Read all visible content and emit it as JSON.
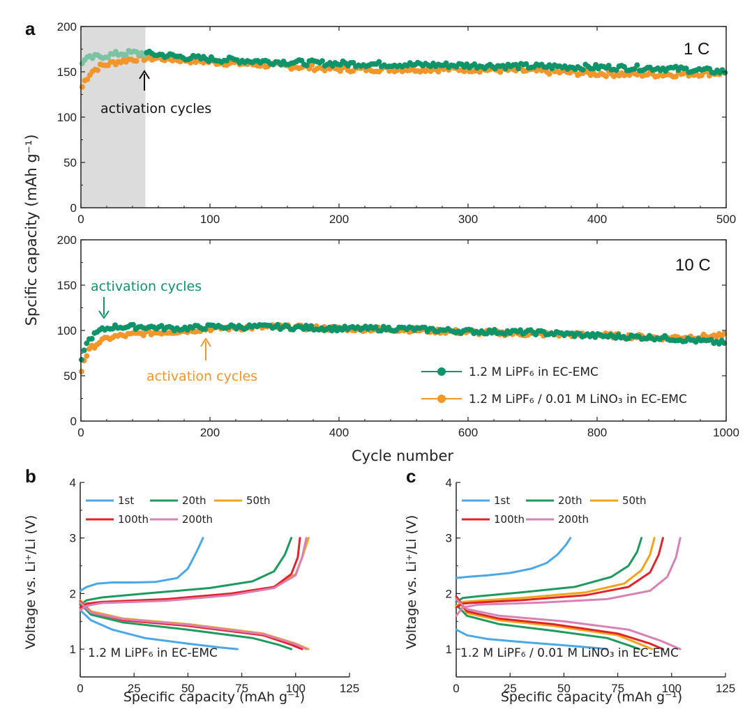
{
  "colors": {
    "green": "#0e9468",
    "orange": "#f2962b",
    "green_light": "#7cc3a3",
    "orange_light": "#f7c48e",
    "shade": "#dcdcdc",
    "cyc1": "#4aa8e8",
    "cyc20": "#1f9a5e",
    "cyc50": "#f0a418",
    "cyc100": "#e0242a",
    "cyc200": "#d981b5"
  },
  "labels": {
    "panel_a": "a",
    "panel_b": "b",
    "panel_c": "c",
    "rate_1c": "1 C",
    "rate_10c": "10 C",
    "act_a1": "activation cycles",
    "act_a2_green": "activation cycles",
    "act_a2_orange": "activation cycles",
    "ylabel_a": "Spcific capacity (mAh g⁻¹)",
    "xlabel_a": "Cycle number",
    "ylabel_bc": "Voltage vs. Li⁺/Li (V)",
    "xlabel_bc": "Specific capacity (mAh g⁻¹)",
    "legend_green": "1.2 M LiPF₆ in EC-EMC",
    "legend_orange": "1.2 M LiPF₆ / 0.01 M LiNO₃ in EC-EMC",
    "cond_b": "1.2 M LiPF₆ in EC-EMC",
    "cond_c": "1.2 M LiPF₆ / 0.01 M LiNO₃ in EC-EMC",
    "cyc_names": [
      "1st",
      "20th",
      "50th",
      "100th",
      "200th"
    ]
  },
  "chart_data": [
    {
      "id": "a_top",
      "type": "scatter",
      "xlim": [
        0,
        500
      ],
      "ylim": [
        0,
        200
      ],
      "xticks": [
        0,
        100,
        200,
        300,
        400,
        500
      ],
      "yticks": [
        0,
        50,
        100,
        150,
        200
      ],
      "shaded_region": [
        0,
        50
      ],
      "series": [
        {
          "name": "1.2 M LiPF₆ in EC-EMC",
          "x": [
            0,
            5,
            10,
            20,
            30,
            40,
            50,
            60,
            80,
            100,
            150,
            200,
            250,
            300,
            350,
            400,
            450,
            500
          ],
          "y": [
            160,
            164,
            166,
            168,
            170,
            171,
            170,
            169,
            166,
            164,
            161,
            159,
            158,
            157,
            156,
            155,
            154,
            150
          ]
        },
        {
          "name": "1.2 M LiPF₆ / 0.01 M LiNO₃ in EC-EMC",
          "x": [
            0,
            3,
            8,
            15,
            25,
            35,
            45,
            60,
            80,
            100,
            150,
            200,
            250,
            300,
            350,
            400,
            450,
            500
          ],
          "y": [
            130,
            140,
            150,
            156,
            160,
            163,
            165,
            165,
            163,
            161,
            157,
            153,
            153,
            153,
            151,
            148,
            147,
            149
          ]
        }
      ]
    },
    {
      "id": "a_bottom",
      "type": "scatter",
      "xlim": [
        0,
        1000
      ],
      "ylim": [
        0,
        200
      ],
      "xticks": [
        0,
        200,
        400,
        600,
        800,
        1000
      ],
      "yticks": [
        0,
        50,
        100,
        150,
        200
      ],
      "series": [
        {
          "name": "1.2 M LiPF₆ in EC-EMC",
          "x": [
            0,
            5,
            15,
            30,
            50,
            100,
            150,
            200,
            300,
            400,
            500,
            600,
            700,
            800,
            900,
            1000
          ],
          "y": [
            62,
            80,
            92,
            100,
            104,
            104,
            102,
            104,
            104,
            102,
            102,
            99,
            98,
            94,
            92,
            86
          ]
        },
        {
          "name": "1.2 M LiPF₆ / 0.01 M LiNO₃ in EC-EMC",
          "x": [
            0,
            5,
            15,
            30,
            50,
            100,
            150,
            200,
            300,
            400,
            500,
            600,
            700,
            800,
            900,
            1000
          ],
          "y": [
            52,
            68,
            80,
            88,
            93,
            97,
            99,
            102,
            104,
            102,
            101,
            98,
            96,
            95,
            92,
            94
          ]
        }
      ]
    },
    {
      "id": "b",
      "type": "line",
      "xlim": [
        0,
        125
      ],
      "ylim": [
        0.5,
        4
      ],
      "xticks": [
        0,
        25,
        50,
        75,
        100,
        125
      ],
      "yticks": [
        1,
        2,
        3,
        4
      ],
      "series": [
        {
          "name": "1st",
          "charge": {
            "x": [
              0,
              3,
              8,
              15,
              25,
              35,
              45,
              50,
              54,
              57
            ],
            "y": [
              2.05,
              2.12,
              2.18,
              2.2,
              2.2,
              2.21,
              2.28,
              2.45,
              2.75,
              3.0
            ]
          },
          "discharge": {
            "x": [
              0,
              5,
              15,
              30,
              50,
              65,
              73
            ],
            "y": [
              1.7,
              1.52,
              1.35,
              1.2,
              1.1,
              1.03,
              1.0
            ]
          }
        },
        {
          "name": "20th",
          "charge": {
            "x": [
              0,
              3,
              10,
              30,
              60,
              80,
              90,
              95,
              98
            ],
            "y": [
              1.8,
              1.88,
              1.93,
              2.0,
              2.1,
              2.22,
              2.4,
              2.7,
              3.0
            ]
          },
          "discharge": {
            "x": [
              0,
              5,
              20,
              50,
              80,
              92,
              98
            ],
            "y": [
              1.82,
              1.62,
              1.48,
              1.35,
              1.2,
              1.08,
              1.0
            ]
          }
        },
        {
          "name": "50th",
          "charge": {
            "x": [
              0,
              3,
              10,
              40,
              70,
              90,
              100,
              103,
              106
            ],
            "y": [
              1.72,
              1.8,
              1.84,
              1.88,
              1.98,
              2.12,
              2.35,
              2.65,
              3.0
            ]
          },
          "discharge": {
            "x": [
              0,
              5,
              20,
              50,
              85,
              100,
              106
            ],
            "y": [
              1.88,
              1.68,
              1.55,
              1.45,
              1.28,
              1.1,
              1.0
            ]
          }
        },
        {
          "name": "100th",
          "charge": {
            "x": [
              0,
              3,
              10,
              40,
              70,
              90,
              98,
              101,
              102
            ],
            "y": [
              1.75,
              1.82,
              1.85,
              1.9,
              2.0,
              2.12,
              2.35,
              2.65,
              3.0
            ]
          },
          "discharge": {
            "x": [
              0,
              5,
              20,
              50,
              85,
              98,
              103
            ],
            "y": [
              1.86,
              1.66,
              1.52,
              1.42,
              1.25,
              1.08,
              1.0
            ]
          }
        },
        {
          "name": "200th",
          "charge": {
            "x": [
              0,
              3,
              10,
              40,
              70,
              90,
              100,
              103,
              105
            ],
            "y": [
              1.7,
              1.78,
              1.83,
              1.87,
              1.97,
              2.1,
              2.33,
              2.65,
              3.0
            ]
          },
          "discharge": {
            "x": [
              0,
              5,
              20,
              50,
              85,
              100,
              105
            ],
            "y": [
              1.84,
              1.66,
              1.54,
              1.44,
              1.27,
              1.09,
              1.0
            ]
          }
        }
      ]
    },
    {
      "id": "c",
      "type": "line",
      "xlim": [
        0,
        125
      ],
      "ylim": [
        0.5,
        4
      ],
      "xticks": [
        0,
        25,
        50,
        75,
        100,
        125
      ],
      "yticks": [
        1,
        2,
        3,
        4
      ],
      "series": [
        {
          "name": "1st",
          "charge": {
            "x": [
              0,
              5,
              15,
              25,
              35,
              42,
              47,
              51,
              53
            ],
            "y": [
              2.28,
              2.3,
              2.33,
              2.37,
              2.45,
              2.55,
              2.7,
              2.88,
              3.0
            ]
          },
          "discharge": {
            "x": [
              0,
              5,
              15,
              30,
              50,
              65,
              70
            ],
            "y": [
              1.35,
              1.25,
              1.18,
              1.13,
              1.07,
              1.02,
              1.0
            ]
          }
        },
        {
          "name": "20th",
          "charge": {
            "x": [
              0,
              3,
              10,
              30,
              55,
              72,
              80,
              84,
              86
            ],
            "y": [
              1.85,
              1.92,
              1.95,
              2.02,
              2.12,
              2.3,
              2.5,
              2.75,
              3.0
            ]
          },
          "discharge": {
            "x": [
              0,
              5,
              20,
              45,
              70,
              80,
              85
            ],
            "y": [
              1.8,
              1.6,
              1.45,
              1.33,
              1.2,
              1.07,
              1.0
            ]
          }
        },
        {
          "name": "50th",
          "charge": {
            "x": [
              0,
              3,
              10,
              30,
              60,
              78,
              86,
              90,
              92
            ],
            "y": [
              1.78,
              1.85,
              1.87,
              1.92,
              2.02,
              2.18,
              2.42,
              2.7,
              3.0
            ]
          },
          "discharge": {
            "x": [
              0,
              5,
              20,
              45,
              75,
              86,
              91
            ],
            "y": [
              1.92,
              1.65,
              1.52,
              1.42,
              1.25,
              1.08,
              1.0
            ]
          }
        },
        {
          "name": "100th",
          "charge": {
            "x": [
              0,
              3,
              10,
              30,
              60,
              80,
              90,
              94,
              96
            ],
            "y": [
              1.75,
              1.82,
              1.84,
              1.88,
              1.97,
              2.12,
              2.38,
              2.7,
              3.0
            ]
          },
          "discharge": {
            "x": [
              0,
              5,
              20,
              45,
              75,
              90,
              96
            ],
            "y": [
              1.95,
              1.68,
              1.55,
              1.45,
              1.28,
              1.1,
              1.0
            ]
          }
        },
        {
          "name": "200th",
          "charge": {
            "x": [
              0,
              3,
              10,
              40,
              70,
              90,
              98,
              102,
              104
            ],
            "y": [
              1.6,
              1.75,
              1.8,
              1.84,
              1.9,
              2.05,
              2.3,
              2.65,
              3.0
            ]
          },
          "discharge": {
            "x": [
              0,
              5,
              20,
              50,
              80,
              95,
              104
            ],
            "y": [
              1.9,
              1.72,
              1.6,
              1.5,
              1.35,
              1.15,
              1.0
            ]
          }
        }
      ]
    }
  ]
}
